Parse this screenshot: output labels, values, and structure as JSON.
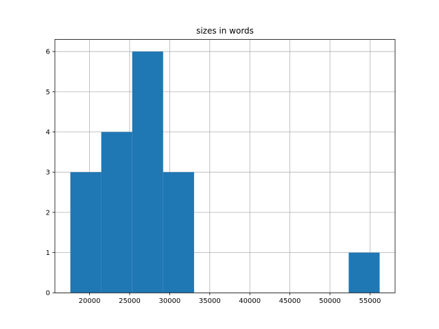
{
  "chart_data": {
    "type": "histogram",
    "title": "sizes in words",
    "bins": [
      17600,
      21460,
      25320,
      29180,
      33040,
      36900,
      40760,
      44620,
      48480,
      52340,
      56200
    ],
    "values": [
      3,
      4,
      6,
      3,
      0,
      0,
      0,
      0,
      0,
      1
    ],
    "color": "#1f77b4",
    "xlim": [
      15670,
      58130
    ],
    "xticks": [
      20000,
      25000,
      30000,
      35000,
      40000,
      45000,
      50000,
      55000
    ],
    "ylim": [
      0,
      6.3
    ],
    "yticks": [
      0,
      1,
      2,
      3,
      4,
      5,
      6
    ],
    "grid": true
  }
}
